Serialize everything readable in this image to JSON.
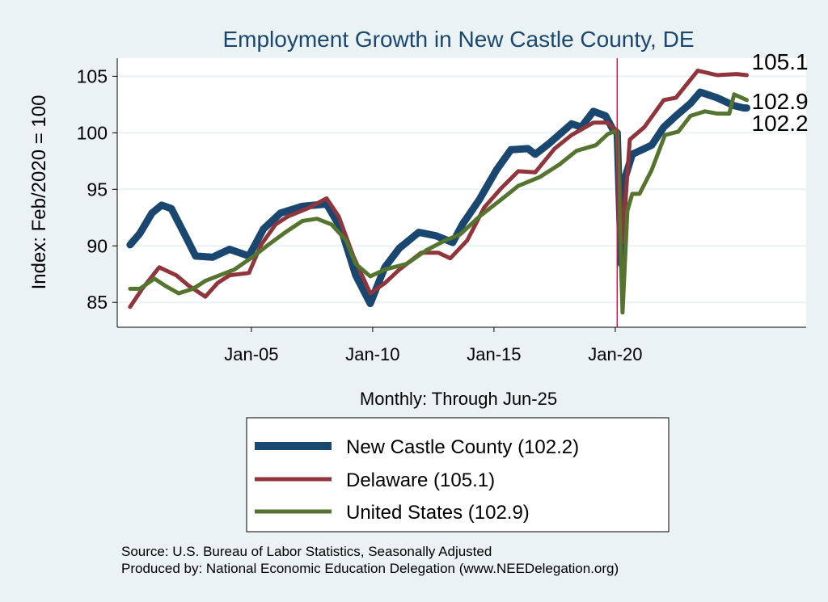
{
  "chart_data": {
    "type": "line",
    "title": "Employment Growth in New Castle  County, DE",
    "xlabel": "Monthly: Through Jun-25",
    "ylabel": "Index: Feb/2020 = 100",
    "xlim": [
      1999.47,
      2027.87
    ],
    "ylim": [
      82.8,
      106.6
    ],
    "yticks": [
      85,
      90,
      95,
      100,
      105
    ],
    "ytick_labels": [
      "85",
      "90",
      "95",
      "100",
      "105"
    ],
    "xticks": [
      2005,
      2010,
      2015,
      2020
    ],
    "xtick_labels": [
      "Jan-05",
      "Jan-10",
      "Jan-15",
      "Jan-20"
    ],
    "grid": true,
    "reference_line_x": 2020.08,
    "legend_placement": "bottom",
    "series": [
      {
        "name": "New Castle  County (102.2)",
        "color": "#1a476f",
        "end_label": "102.2",
        "x": [
          2000.0,
          2000.4,
          2000.9,
          2001.3,
          2001.7,
          2002.3,
          2002.7,
          2003.4,
          2004.1,
          2004.9,
          2005.5,
          2006.2,
          2007.1,
          2008.1,
          2008.7,
          2009.3,
          2009.9,
          2010.5,
          2011.1,
          2011.9,
          2012.6,
          2013.3,
          2013.7,
          2014.4,
          2015.1,
          2015.7,
          2016.4,
          2016.7,
          2017.3,
          2018.2,
          2018.6,
          2019.1,
          2019.6,
          2019.9,
          2020.08,
          2020.25,
          2020.4,
          2020.7,
          2021.5,
          2022.0,
          2022.5,
          2023.1,
          2023.5,
          2024.2,
          2024.9,
          2025.3,
          2025.42
        ],
        "y": [
          90.1,
          91.1,
          92.9,
          93.6,
          93.3,
          90.8,
          89.1,
          89.0,
          89.7,
          89.1,
          91.5,
          92.9,
          93.5,
          93.7,
          91.5,
          87.4,
          84.9,
          88.1,
          89.8,
          91.2,
          90.9,
          90.3,
          91.9,
          94.1,
          96.7,
          98.5,
          98.6,
          98.1,
          99.1,
          100.8,
          100.5,
          101.9,
          101.5,
          100.3,
          100.0,
          88.4,
          96.0,
          98.1,
          98.9,
          100.5,
          101.5,
          102.6,
          103.6,
          103.1,
          102.4,
          102.2,
          102.2
        ]
      },
      {
        "name": "Delaware (105.1)",
        "color": "#90353b",
        "end_label": "105.1",
        "x": [
          2000.0,
          2000.5,
          2001.2,
          2001.9,
          2002.4,
          2003.1,
          2003.6,
          2004.1,
          2004.9,
          2005.4,
          2006.0,
          2006.5,
          2007.3,
          2008.1,
          2008.6,
          2009.2,
          2009.9,
          2010.5,
          2011.1,
          2012.0,
          2012.7,
          2013.2,
          2013.9,
          2014.6,
          2015.3,
          2016.0,
          2016.7,
          2017.5,
          2018.2,
          2019.1,
          2019.7,
          2020.08,
          2020.3,
          2020.6,
          2021.2,
          2022.0,
          2022.5,
          2023.4,
          2024.2,
          2025.0,
          2025.42
        ],
        "y": [
          84.6,
          86.2,
          88.1,
          87.4,
          86.5,
          85.5,
          86.7,
          87.4,
          87.6,
          90.1,
          91.9,
          92.6,
          93.3,
          94.2,
          92.6,
          89.1,
          85.8,
          86.7,
          87.9,
          89.4,
          89.4,
          88.9,
          90.5,
          93.4,
          95.1,
          96.6,
          96.5,
          98.6,
          99.8,
          100.9,
          100.9,
          100.0,
          90.3,
          99.4,
          100.5,
          102.9,
          103.1,
          105.5,
          105.1,
          105.2,
          105.1
        ]
      },
      {
        "name": "United States (102.9)",
        "color": "#55752f",
        "end_label": "102.9",
        "x": [
          2000.0,
          2000.4,
          2001.0,
          2001.5,
          2002.0,
          2002.6,
          2003.1,
          2003.7,
          2004.3,
          2005.1,
          2005.7,
          2006.4,
          2007.1,
          2007.7,
          2008.3,
          2008.9,
          2009.3,
          2009.9,
          2010.5,
          2011.4,
          2012.2,
          2013.0,
          2013.6,
          2014.4,
          2015.3,
          2016.0,
          2016.9,
          2017.7,
          2018.4,
          2019.2,
          2019.7,
          2020.08,
          2020.3,
          2020.5,
          2020.7,
          2021.0,
          2021.5,
          2022.05,
          2022.6,
          2023.1,
          2023.7,
          2024.2,
          2024.7,
          2024.9,
          2025.42
        ],
        "y": [
          86.2,
          86.2,
          87.1,
          86.4,
          85.8,
          86.2,
          86.9,
          87.4,
          87.9,
          89.1,
          90.1,
          91.2,
          92.2,
          92.4,
          91.9,
          90.5,
          88.4,
          87.3,
          87.9,
          88.4,
          89.6,
          90.5,
          91.0,
          92.6,
          94.1,
          95.3,
          96.1,
          97.2,
          98.4,
          98.9,
          99.9,
          100.2,
          84.1,
          93.1,
          94.6,
          94.6,
          96.7,
          99.8,
          100.1,
          101.5,
          101.9,
          101.7,
          101.7,
          103.4,
          102.9
        ]
      }
    ]
  },
  "legend": {
    "items": [
      "New Castle  County (102.2)",
      "Delaware (105.1)",
      "United States (102.9)"
    ]
  },
  "notes": {
    "source": "Source: U.S. Bureau of Labor Statistics, Seasonally Adjusted",
    "produced_by": "Produced by: National Economic Education Delegation (www.NEEDelegation.org)"
  }
}
